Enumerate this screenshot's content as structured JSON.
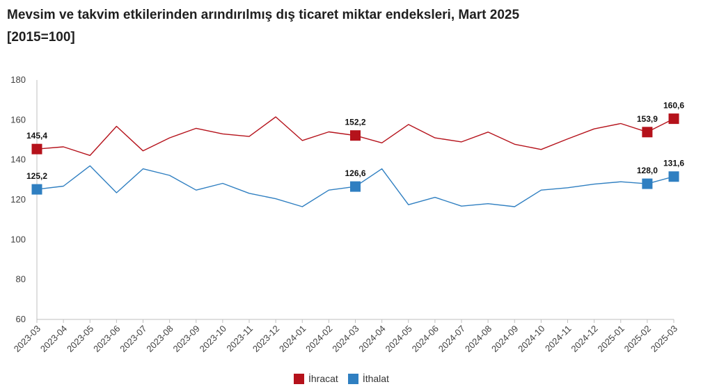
{
  "title": "Mevsim ve takvim etkilerinden arındırılmış dış ticaret miktar endeksleri, Mart 2025",
  "subtitle": "[2015=100]",
  "colors": {
    "ihracat": "#b5121b",
    "ithalat": "#2f7fc1",
    "grid": "#d9d9d9",
    "axis": "#bfbfbf"
  },
  "chart_data": {
    "type": "line",
    "title": "Mevsim ve takvim etkilerinden arındırılmış dış ticaret miktar endeksleri, Mart 2025",
    "subtitle": "[2015=100]",
    "ylim": [
      60,
      180
    ],
    "yticks": [
      60,
      80,
      100,
      120,
      140,
      160,
      180
    ],
    "grid": false,
    "legend_position": "bottom-center",
    "categories": [
      "2023-03",
      "2023-04",
      "2023-05",
      "2023-06",
      "2023-07",
      "2023-08",
      "2023-09",
      "2023-10",
      "2023-11",
      "2023-12",
      "2024-01",
      "2024-02",
      "2024-03",
      "2024-04",
      "2024-05",
      "2024-06",
      "2024-07",
      "2024-08",
      "2024-09",
      "2024-10",
      "2024-11",
      "2024-12",
      "2025-01",
      "2025-02",
      "2025-03"
    ],
    "series": [
      {
        "name": "İhracat",
        "color": "#b5121b",
        "values": [
          145.4,
          146.5,
          142.2,
          156.8,
          144.5,
          151.0,
          155.8,
          153.0,
          151.7,
          161.5,
          149.7,
          154.0,
          152.2,
          148.5,
          157.7,
          151.0,
          149.0,
          153.9,
          147.8,
          145.2,
          150.5,
          155.5,
          158.2,
          153.9,
          160.6
        ],
        "labeled": [
          {
            "index": 0,
            "text": "145,4"
          },
          {
            "index": 12,
            "text": "152,2"
          },
          {
            "index": 23,
            "text": "153,9"
          },
          {
            "index": 24,
            "text": "160,6"
          }
        ]
      },
      {
        "name": "İthalat",
        "color": "#2f7fc1",
        "values": [
          125.2,
          126.8,
          137.0,
          123.5,
          135.5,
          132.2,
          124.8,
          128.2,
          123.2,
          120.5,
          116.5,
          124.8,
          126.6,
          135.5,
          117.5,
          121.2,
          116.8,
          118.0,
          116.5,
          124.8,
          126.0,
          127.8,
          129.0,
          128.0,
          131.6
        ],
        "labeled": [
          {
            "index": 0,
            "text": "125,2"
          },
          {
            "index": 12,
            "text": "126,6"
          },
          {
            "index": 23,
            "text": "128,0"
          },
          {
            "index": 24,
            "text": "131,6"
          }
        ]
      }
    ]
  }
}
